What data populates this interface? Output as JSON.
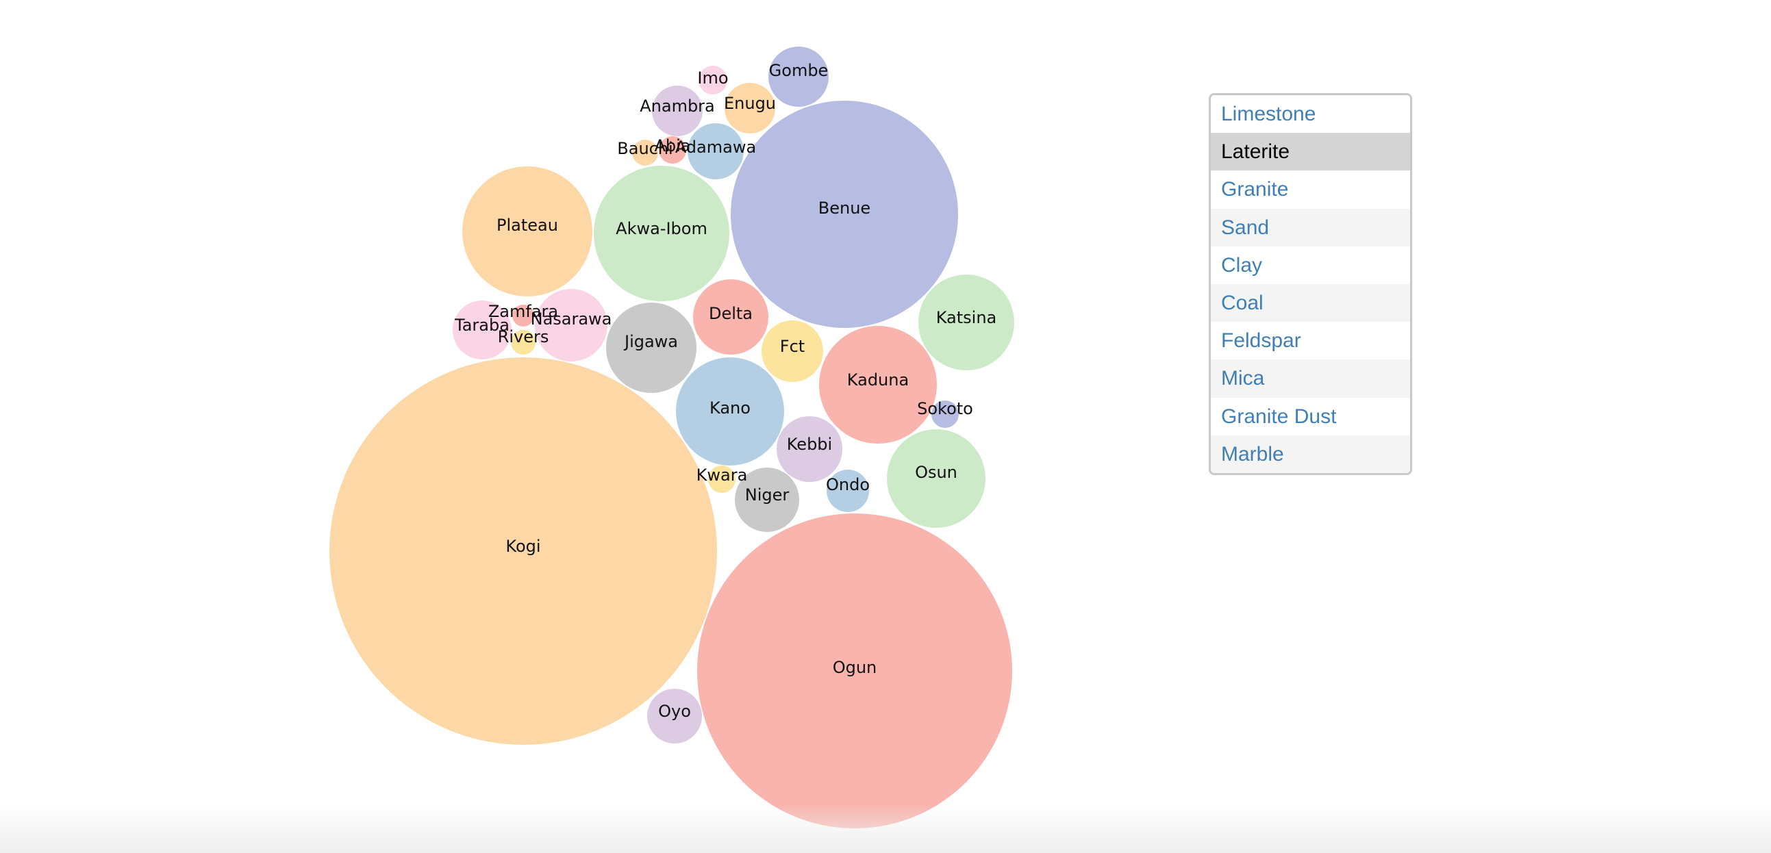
{
  "chart_data": {
    "type": "bubble",
    "title": "",
    "palette": [
      "#fdd8a6",
      "#f9b4ae",
      "#b7bde2",
      "#cdeac8",
      "#b4cfe4",
      "#dccbe3",
      "#c9c9c9",
      "#fde49d",
      "#fbd4e6"
    ],
    "bubbles": [
      {
        "label": "Kogi",
        "color": "#fdd8a6"
      },
      {
        "label": "Ogun",
        "color": "#f9b4ae"
      },
      {
        "label": "Benue",
        "color": "#b7bde2"
      },
      {
        "label": "Akwa-Ibom",
        "color": "#cdeac8"
      },
      {
        "label": "Plateau",
        "color": "#fdd8a6"
      },
      {
        "label": "Kano",
        "color": "#b4cfe4"
      },
      {
        "label": "Kaduna",
        "color": "#f9b4ae"
      },
      {
        "label": "Katsina",
        "color": "#cdeac8"
      },
      {
        "label": "Osun",
        "color": "#cdeac8"
      },
      {
        "label": "Jigawa",
        "color": "#c9c9c9"
      },
      {
        "label": "Delta",
        "color": "#f9b4ae"
      },
      {
        "label": "Nasarawa",
        "color": "#fbd4e6"
      },
      {
        "label": "Taraba",
        "color": "#fbd4e6"
      },
      {
        "label": "Fct",
        "color": "#fde49d"
      },
      {
        "label": "Kebbi",
        "color": "#dccbe3"
      },
      {
        "label": "Niger",
        "color": "#c9c9c9"
      },
      {
        "label": "Oyo",
        "color": "#dccbe3"
      },
      {
        "label": "Gombe",
        "color": "#b7bde2"
      },
      {
        "label": "Adamawa",
        "color": "#b4cfe4"
      },
      {
        "label": "Anambra",
        "color": "#dccbe3"
      },
      {
        "label": "Enugu",
        "color": "#fdd8a6"
      },
      {
        "label": "Ondo",
        "color": "#b4cfe4"
      },
      {
        "label": "Imo",
        "color": "#fbd4e6"
      },
      {
        "label": "Kwara",
        "color": "#fde49d"
      },
      {
        "label": "Sokoto",
        "color": "#b7bde2"
      },
      {
        "label": "Bauchi",
        "color": "#fdd8a6"
      },
      {
        "label": "Abia",
        "color": "#f9b4ae"
      },
      {
        "label": "Zamfara",
        "color": "#f9b4ae"
      },
      {
        "label": "Rivers",
        "color": "#fde49d"
      }
    ]
  },
  "selector": {
    "items": [
      "Limestone",
      "Laterite",
      "Granite",
      "Sand",
      "Clay",
      "Coal",
      "Feldspar",
      "Mica",
      "Granite Dust",
      "Marble"
    ],
    "selected": "Laterite"
  }
}
